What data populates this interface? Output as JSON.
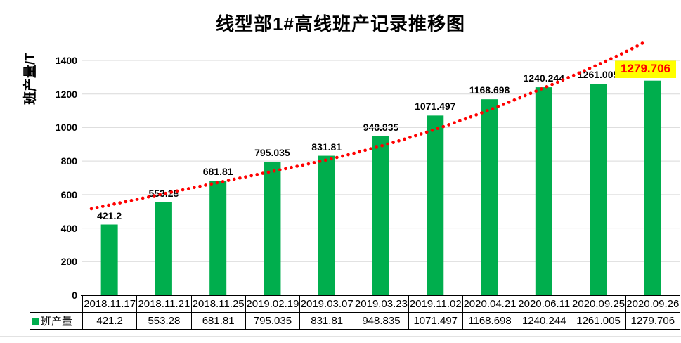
{
  "chart_data": {
    "type": "bar",
    "title": "线型部1#高线班产记录推移图",
    "ylabel": "班产量/T",
    "ylim": [
      0,
      1400
    ],
    "ytick_step": 200,
    "yticks": [
      "0",
      "200",
      "400",
      "600",
      "800",
      "1000",
      "1200",
      "1400"
    ],
    "grid": true,
    "legend_position": "bottom-table",
    "categories": [
      "2018.11.17",
      "2018.11.21",
      "2018.11.25",
      "2019.02.19",
      "2019.03.07",
      "2019.03.23",
      "2019.11.02",
      "2020.04.21",
      "2020.06.11",
      "2020.09.25",
      "2020.09.26"
    ],
    "series": [
      {
        "name": "班产量",
        "color": "#00AE4D",
        "values": [
          421.2,
          553.28,
          681.81,
          795.035,
          831.81,
          948.835,
          1071.497,
          1168.698,
          1240.244,
          1261.005,
          1279.706
        ],
        "labels": [
          "421.2",
          "553.28",
          "681.81",
          "795.035",
          "831.81",
          "948.835",
          "1071.497",
          "1168.698",
          "1240.244",
          "1261.005",
          "1279.706"
        ]
      }
    ],
    "highlighted_label": {
      "index": 10,
      "text": "1279.706",
      "text_color": "#FF0000",
      "background": "#FFFF00"
    },
    "trendline": {
      "color": "#FF0000",
      "style": "dotted"
    },
    "colors": {
      "bar": "#00AE4D",
      "gridline": "#D9D9D9",
      "axis": "#000000",
      "label_text": "#000000"
    }
  }
}
